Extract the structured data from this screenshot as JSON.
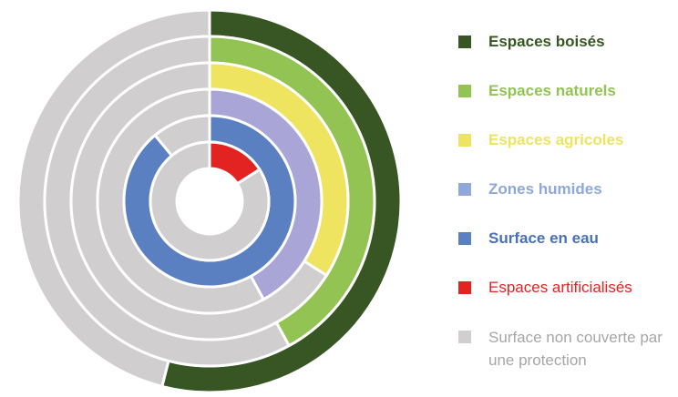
{
  "chart_data": {
    "type": "nested-donut",
    "description_units": "share of total surface, percent (estimated)",
    "series": [
      {
        "name": "Espaces boisés",
        "color": "#375623",
        "value": 54
      },
      {
        "name": "Espaces naturels",
        "color": "#92c353",
        "value": 42
      },
      {
        "name": "Espaces agricoles",
        "color": "#eee460",
        "value": 34
      },
      {
        "name": "Zones humides",
        "color": "#a9a5d6",
        "value": 42
      },
      {
        "name": "Surface en eau",
        "color": "#5b80c2",
        "value": 89
      },
      {
        "name": "Espaces artificialisés",
        "color": "#e32322",
        "value": 16
      }
    ],
    "remainder": {
      "name": "Surface non couverte par une protection",
      "color": "#d0cece"
    }
  },
  "legend": [
    {
      "label": "Espaces boisés",
      "color": "#375623",
      "text_color": "#375623",
      "bold": true
    },
    {
      "label": "Espaces naturels",
      "color": "#92c353",
      "text_color": "#92c353",
      "bold": true
    },
    {
      "label": "Espaces agricoles",
      "color": "#eee460",
      "text_color": "#eee460",
      "bold": true
    },
    {
      "label": "Zones humides",
      "color": "#8fa8d9",
      "text_color": "#8fa8d9",
      "bold": true
    },
    {
      "label": "Surface en eau",
      "color": "#5b80c2",
      "text_color": "#4a70b8",
      "bold": true
    },
    {
      "label": "Espaces artificialisés",
      "color": "#e32322",
      "text_color": "#e32322",
      "bold": false
    },
    {
      "label": "Surface non couverte par une protection",
      "color": "#d0cece",
      "text_color": "#a6a6a6",
      "bold": false
    }
  ]
}
